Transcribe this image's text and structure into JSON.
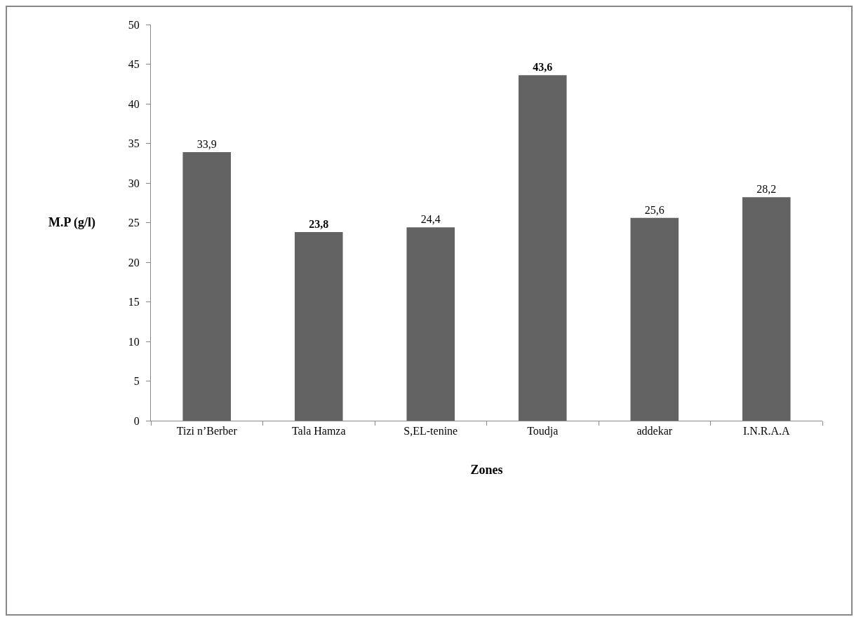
{
  "chart_data": {
    "type": "bar",
    "categories": [
      "Tizi n’Berber",
      "Tala Hamza",
      "S,EL-tenine",
      "Toudja",
      "addekar",
      "I.N.R.A.A"
    ],
    "values": [
      33.9,
      23.8,
      24.4,
      43.6,
      25.6,
      28.2
    ],
    "value_labels": [
      "33,9",
      "23,8",
      "24,4",
      "43,6",
      "25,6",
      "28,2"
    ],
    "color": "#636363",
    "xlabel": "Zones",
    "ylabel": "M.P (g/l)",
    "ylim": [
      0,
      50
    ],
    "yticks": [
      0,
      5,
      10,
      15,
      20,
      25,
      30,
      35,
      40,
      45,
      50
    ],
    "grid": false
  }
}
